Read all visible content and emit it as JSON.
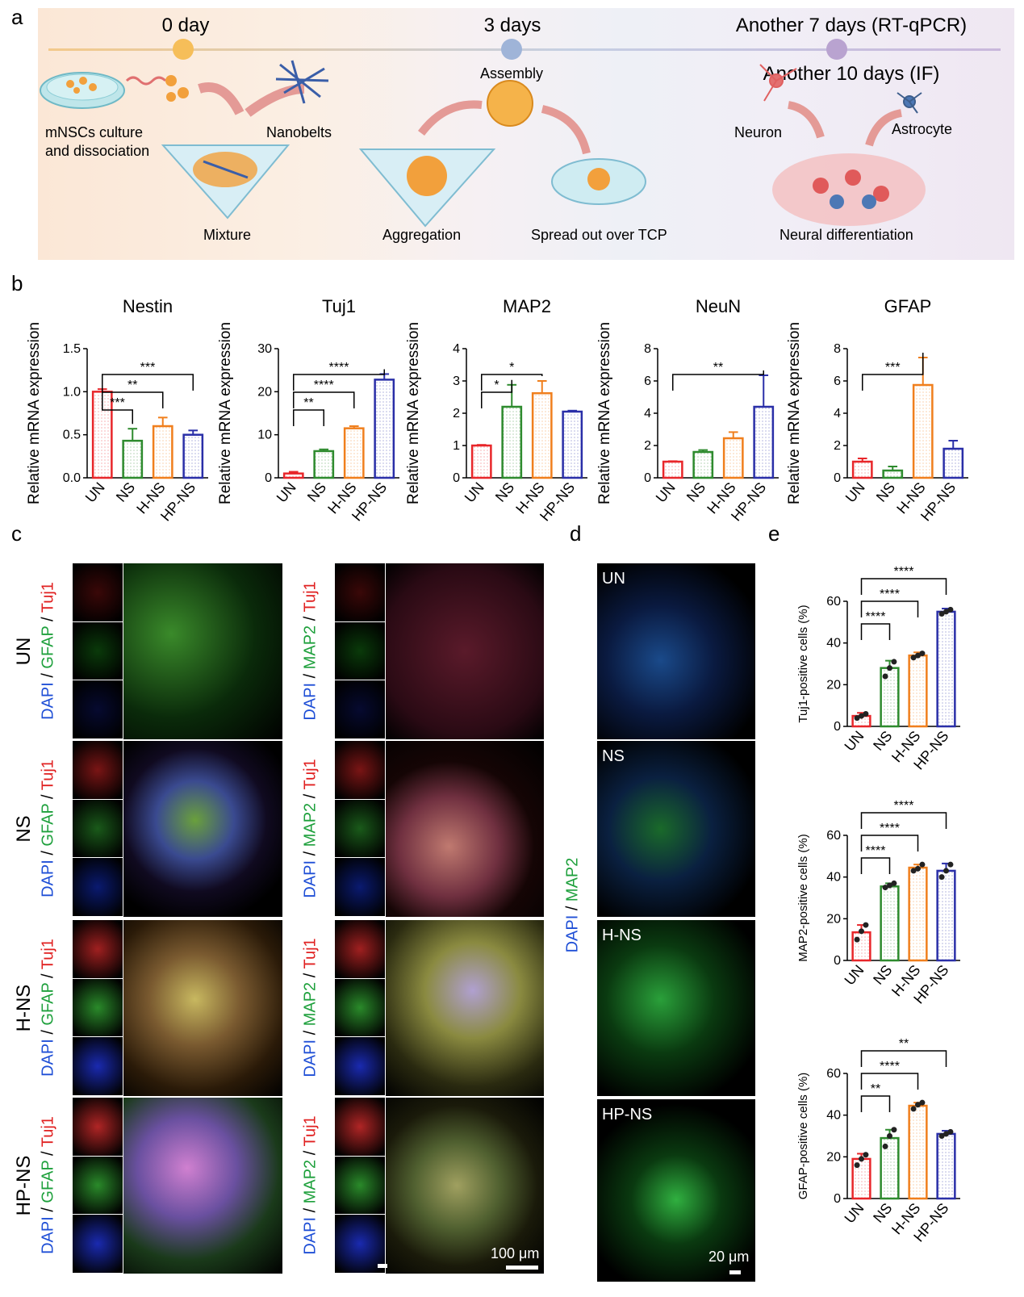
{
  "panels": {
    "a": "a",
    "b": "b",
    "c": "c",
    "d": "d",
    "e": "e"
  },
  "timeline": {
    "t0": "0 day",
    "t1": "3 days",
    "t2": "Another 7 days (RT-qPCR)",
    "t3": "Another 10 days (IF)",
    "culture": "mNSCs culture",
    "dissociation": "and dissociation",
    "nanobelts": "Nanobelts",
    "mixture": "Mixture",
    "assembly": "Assembly",
    "aggregation": "Aggregation",
    "spread": "Spread out over TCP",
    "neuron": "Neuron",
    "astrocyte": "Astrocyte",
    "neural": "Neural differentiation"
  },
  "colors": {
    "UN": "#e8262a",
    "NS": "#2e8b2e",
    "H-NS": "#f07f1d",
    "HP-NS": "#2a2fa8"
  },
  "chart_data": [
    {
      "type": "bar",
      "title": "Nestin",
      "ylabel": "Relative mRNA expression",
      "categories": [
        "UN",
        "NS",
        "H-NS",
        "HP-NS"
      ],
      "values": [
        1.0,
        0.43,
        0.6,
        0.5
      ],
      "errors": [
        0.03,
        0.14,
        0.1,
        0.05
      ],
      "ylim": [
        0,
        1.5
      ],
      "yticks": [
        "0.0",
        "0.5",
        "1.0",
        "1.5"
      ],
      "significance": [
        {
          "pair": [
            "UN",
            "NS"
          ],
          "label": "***"
        },
        {
          "pair": [
            "UN",
            "H-NS"
          ],
          "label": "**"
        },
        {
          "pair": [
            "UN",
            "HP-NS"
          ],
          "label": "***"
        }
      ]
    },
    {
      "type": "bar",
      "title": "Tuj1",
      "ylabel": "Relative mRNA expression",
      "categories": [
        "UN",
        "NS",
        "H-NS",
        "HP-NS"
      ],
      "values": [
        1.0,
        6.2,
        11.5,
        22.8
      ],
      "errors": [
        0.4,
        0.4,
        0.5,
        1.3
      ],
      "ylim": [
        0,
        30
      ],
      "yticks": [
        "0",
        "10",
        "20",
        "30"
      ],
      "significance": [
        {
          "pair": [
            "UN",
            "NS"
          ],
          "label": "**"
        },
        {
          "pair": [
            "UN",
            "H-NS"
          ],
          "label": "****"
        },
        {
          "pair": [
            "UN",
            "HP-NS"
          ],
          "label": "****"
        }
      ]
    },
    {
      "type": "bar",
      "title": "MAP2",
      "ylabel": "Relative mRNA expression",
      "categories": [
        "UN",
        "NS",
        "H-NS",
        "HP-NS"
      ],
      "values": [
        1.0,
        2.2,
        2.62,
        2.05
      ],
      "errors": [
        0.02,
        0.68,
        0.38,
        0.03
      ],
      "ylim": [
        0,
        4
      ],
      "yticks": [
        "0",
        "1",
        "2",
        "3",
        "4"
      ],
      "significance": [
        {
          "pair": [
            "UN",
            "NS"
          ],
          "label": "*"
        },
        {
          "pair": [
            "UN",
            "H-NS"
          ],
          "label": "*"
        }
      ]
    },
    {
      "type": "bar",
      "title": "NeuN",
      "ylabel": "Relative mRNA expression",
      "categories": [
        "UN",
        "NS",
        "H-NS",
        "HP-NS"
      ],
      "values": [
        1.0,
        1.6,
        2.45,
        4.4
      ],
      "errors": [
        0.03,
        0.12,
        0.38,
        1.95
      ],
      "ylim": [
        0,
        8
      ],
      "yticks": [
        "0",
        "2",
        "4",
        "6",
        "8"
      ],
      "significance": [
        {
          "pair": [
            "UN",
            "HP-NS"
          ],
          "label": "**"
        }
      ]
    },
    {
      "type": "bar",
      "title": "GFAP",
      "ylabel": "Relative mRNA expression",
      "categories": [
        "UN",
        "NS",
        "H-NS",
        "HP-NS"
      ],
      "values": [
        1.0,
        0.45,
        5.75,
        1.8
      ],
      "errors": [
        0.2,
        0.25,
        1.7,
        0.5
      ],
      "ylim": [
        0,
        8
      ],
      "yticks": [
        "0",
        "2",
        "4",
        "6",
        "8"
      ],
      "significance": [
        {
          "pair": [
            "UN",
            "H-NS"
          ],
          "label": "***"
        }
      ]
    },
    {
      "type": "bar",
      "ylabel": "Tuj1-positive cells (%)",
      "categories": [
        "UN",
        "NS",
        "H-NS",
        "HP-NS"
      ],
      "values": [
        5,
        28,
        34,
        55
      ],
      "errors": [
        1.5,
        3.5,
        1.5,
        1.5
      ],
      "points": [
        [
          4,
          5,
          6
        ],
        [
          24,
          28,
          31
        ],
        [
          33,
          34,
          35
        ]
      ],
      "points4": [
        54,
        55,
        56
      ],
      "ylim": [
        0,
        60
      ],
      "yticks": [
        "0",
        "20",
        "40",
        "60"
      ],
      "significance": [
        {
          "pair": [
            "UN",
            "NS"
          ],
          "label": "****"
        },
        {
          "pair": [
            "UN",
            "H-NS"
          ],
          "label": "****"
        },
        {
          "pair": [
            "UN",
            "HP-NS"
          ],
          "label": "****"
        }
      ]
    },
    {
      "type": "bar",
      "ylabel": "MAP2-positive cells (%)",
      "categories": [
        "UN",
        "NS",
        "H-NS",
        "HP-NS"
      ],
      "values": [
        13.5,
        35.5,
        44.5,
        43
      ],
      "errors": [
        3.5,
        1.5,
        1.5,
        3.5
      ],
      "points": [
        [
          10,
          14,
          17
        ],
        [
          35,
          36,
          37
        ],
        [
          43,
          44,
          46
        ]
      ],
      "points4": [
        40,
        43,
        46
      ],
      "ylim": [
        0,
        60
      ],
      "yticks": [
        "0",
        "20",
        "40",
        "60"
      ],
      "significance": [
        {
          "pair": [
            "UN",
            "NS"
          ],
          "label": "****"
        },
        {
          "pair": [
            "UN",
            "H-NS"
          ],
          "label": "****"
        },
        {
          "pair": [
            "UN",
            "HP-NS"
          ],
          "label": "****"
        }
      ]
    },
    {
      "type": "bar",
      "ylabel": "GFAP-positive cells (%)",
      "categories": [
        "UN",
        "NS",
        "H-NS",
        "HP-NS"
      ],
      "values": [
        19,
        29,
        44.5,
        31
      ],
      "errors": [
        2.5,
        4,
        1.5,
        1.5
      ],
      "points": [
        [
          16,
          19,
          21
        ],
        [
          25,
          30,
          33
        ],
        [
          43,
          45,
          46
        ]
      ],
      "points4": [
        30,
        31,
        32
      ],
      "ylim": [
        0,
        60
      ],
      "yticks": [
        "0",
        "20",
        "40",
        "60"
      ],
      "significance": [
        {
          "pair": [
            "UN",
            "NS"
          ],
          "label": "**"
        },
        {
          "pair": [
            "UN",
            "H-NS"
          ],
          "label": "****"
        },
        {
          "pair": [
            "UN",
            "HP-NS"
          ],
          "label": "**"
        }
      ]
    }
  ],
  "panel_c": {
    "rows": [
      "UN",
      "NS",
      "H-NS",
      "HP-NS"
    ],
    "stain1": {
      "a": "DAPI",
      "s1": " / ",
      "b": "GFAP",
      "s2": " / ",
      "c": "Tuj1"
    },
    "stain2": {
      "a": "DAPI",
      "s1": " / ",
      "b": "MAP2",
      "s2": " / ",
      "c": "Tuj1"
    },
    "scale": "100 μm"
  },
  "panel_d": {
    "rows": [
      "UN",
      "NS",
      "H-NS",
      "HP-NS"
    ],
    "stain": {
      "a": "DAPI",
      "s": " / ",
      "b": "MAP2"
    },
    "scale": "20 μm"
  }
}
